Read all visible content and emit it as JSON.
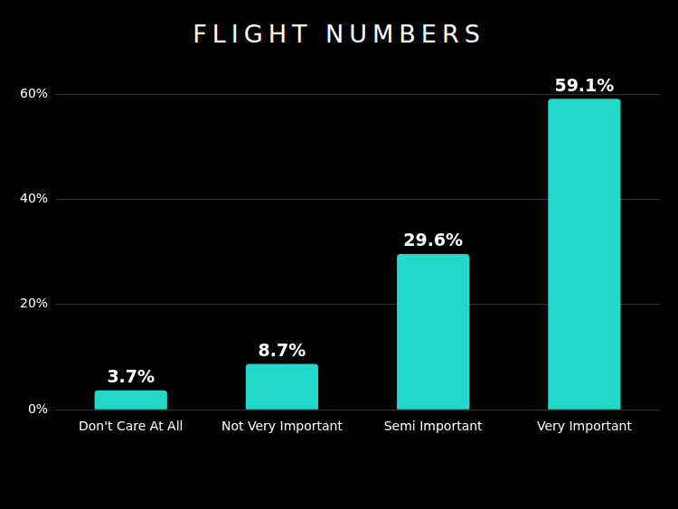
{
  "chart_data": {
    "type": "bar",
    "title": "FLIGHT NUMBERS",
    "categories": [
      "Don't Care At All",
      "Not Very Important",
      "Semi Important",
      "Very Important"
    ],
    "values": [
      3.7,
      8.7,
      29.6,
      59.1
    ],
    "value_labels": [
      "3.7%",
      "8.7%",
      "29.6%",
      "59.1%"
    ],
    "color": "#22d9c9",
    "ylim": [
      0,
      60
    ],
    "yticks": [
      {
        "value": 0,
        "label": "0%"
      },
      {
        "value": 20,
        "label": "20%"
      },
      {
        "value": 40,
        "label": "40%"
      },
      {
        "value": 60,
        "label": "60%"
      }
    ],
    "grid": true,
    "data_labels": true
  }
}
